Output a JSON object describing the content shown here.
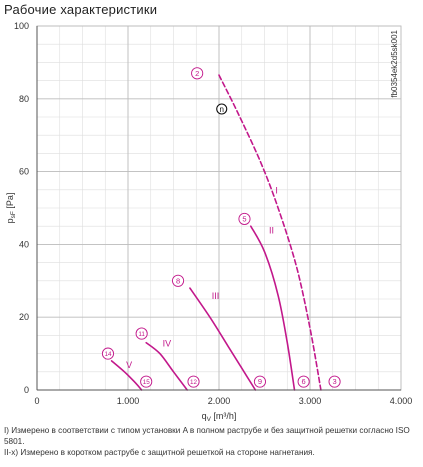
{
  "title": "Рабочие характеристики",
  "chart_data": {
    "type": "line",
    "xlabel": "q",
    "xlabel_sub": "V",
    "xlabel_unit": " [m³/h]",
    "ylabel": "p",
    "ylabel_sub": "sF",
    "ylabel_unit": " [Pa]",
    "xlim": [
      0,
      4000
    ],
    "ylim": [
      0,
      100
    ],
    "x_ticks": [
      0,
      1000,
      2000,
      3000,
      4000
    ],
    "x_tick_labels": [
      "0",
      "1.000",
      "2.000",
      "3.000",
      "4.000"
    ],
    "y_ticks": [
      0,
      20,
      40,
      60,
      80,
      100
    ],
    "y_tick_labels": [
      "0",
      "20",
      "40",
      "60",
      "80",
      "100"
    ],
    "grid": true,
    "watermark_id": "fb0354ek2d5sk001",
    "color": "#c2188b",
    "series": [
      {
        "name": "I",
        "dashed": true,
        "points": [
          [
            2000,
            86.5
          ],
          [
            2200,
            76.5
          ],
          [
            2450,
            63
          ],
          [
            2650,
            50
          ],
          [
            2850,
            34
          ],
          [
            3000,
            17
          ],
          [
            3120,
            0
          ]
        ],
        "label_at": [
          2620,
          54
        ]
      },
      {
        "name": "II",
        "dashed": false,
        "points": [
          [
            2350,
            45
          ],
          [
            2500,
            38
          ],
          [
            2650,
            26
          ],
          [
            2750,
            13
          ],
          [
            2830,
            0
          ]
        ],
        "label_at": [
          2550,
          43
        ]
      },
      {
        "name": "III",
        "dashed": false,
        "points": [
          [
            1680,
            28
          ],
          [
            1900,
            20
          ],
          [
            2100,
            12
          ],
          [
            2250,
            6
          ],
          [
            2400,
            0
          ]
        ],
        "label_at": [
          1920,
          25
        ]
      },
      {
        "name": "IV",
        "dashed": false,
        "points": [
          [
            1200,
            13
          ],
          [
            1350,
            10
          ],
          [
            1500,
            5
          ],
          [
            1650,
            0
          ]
        ],
        "label_at": [
          1380,
          12
        ]
      },
      {
        "name": "V",
        "dashed": false,
        "points": [
          [
            820,
            8
          ],
          [
            960,
            5
          ],
          [
            1080,
            2
          ],
          [
            1150,
            0
          ]
        ],
        "label_at": [
          980,
          6
        ]
      }
    ],
    "markers": [
      {
        "label": "2",
        "x": 1760,
        "y": 87
      },
      {
        "label": "5",
        "x": 2280,
        "y": 47
      },
      {
        "label": "8",
        "x": 1550,
        "y": 30
      },
      {
        "label": "11",
        "x": 1150,
        "y": 15.5
      },
      {
        "label": "14",
        "x": 780,
        "y": 10
      },
      {
        "label": "15",
        "x": 1200,
        "y": 2.3
      },
      {
        "label": "12",
        "x": 1720,
        "y": 2.3
      },
      {
        "label": "9",
        "x": 2450,
        "y": 2.3
      },
      {
        "label": "6",
        "x": 2930,
        "y": 2.3
      },
      {
        "label": "3",
        "x": 3270,
        "y": 2.3
      }
    ],
    "operating_point": {
      "label": "n",
      "x": 2030,
      "y": 77.2
    }
  },
  "notes": {
    "line1": "I) Измерено в соответствии с типом установки A в полном раструбе и без защитной решетки согласно ISO 5801.",
    "line2": "II-x) Измерено в коротком раструбе с защитной решеткой на стороне нагнетания."
  }
}
